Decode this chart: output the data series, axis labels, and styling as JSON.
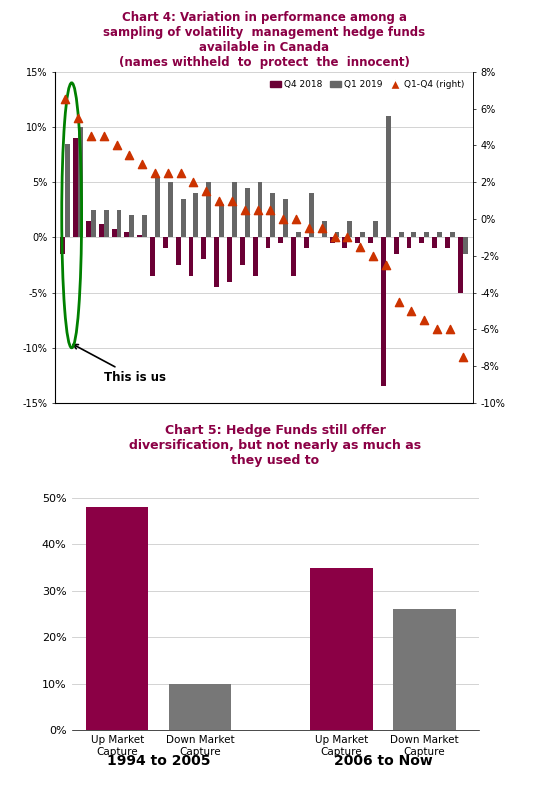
{
  "chart4_title": "Chart 4: Variation in performance among a\nsampling of volatility  management hedge funds\navailable in Canada\n(names withheld  to  protect  the  innocent)",
  "chart4_title_color": "#8B0045",
  "chart5_title": "Chart 5: Hedge Funds still offer\ndiversification, but not nearly as much as\nthey used to",
  "chart5_title_color": "#8B0045",
  "q4_2018": [
    -1.5,
    9.0,
    1.5,
    1.2,
    0.8,
    0.5,
    0.2,
    -3.5,
    -1.0,
    -2.5,
    -3.5,
    -2.0,
    -4.5,
    -4.0,
    -2.5,
    -3.5,
    -1.0,
    -0.5,
    -3.5,
    -1.0,
    0.0,
    -0.5,
    -1.0,
    -0.5,
    -0.5,
    -13.5,
    -1.5,
    -1.0,
    -0.5,
    -1.0,
    -1.0,
    -5.0
  ],
  "q1_2019": [
    8.5,
    10.0,
    2.5,
    2.5,
    2.5,
    2.0,
    2.0,
    5.5,
    5.0,
    3.5,
    4.0,
    5.0,
    3.0,
    5.0,
    4.5,
    5.0,
    4.0,
    3.5,
    0.5,
    4.0,
    1.5,
    0.5,
    1.5,
    0.5,
    1.5,
    11.0,
    0.5,
    0.5,
    0.5,
    0.5,
    0.5,
    -1.5
  ],
  "q1q4_right": [
    6.5,
    5.5,
    4.5,
    4.5,
    4.0,
    3.5,
    3.0,
    2.5,
    2.5,
    2.5,
    2.0,
    1.5,
    1.0,
    1.0,
    0.5,
    0.5,
    0.5,
    0.0,
    0.0,
    -0.5,
    -0.5,
    -1.0,
    -1.0,
    -1.5,
    -2.0,
    -2.5,
    -4.5,
    -5.0,
    -5.5,
    -6.0,
    -6.0,
    -7.5
  ],
  "bar_color_q4": "#6B0035",
  "bar_color_q1": "#666666",
  "triangle_color": "#CC3300",
  "ylim_left": [
    -15,
    15
  ],
  "ylim_right": [
    -10,
    8
  ],
  "yticks_left": [
    -15,
    -10,
    -5,
    0,
    5,
    10,
    15
  ],
  "yticks_right": [
    -10,
    -8,
    -6,
    -4,
    -2,
    0,
    2,
    4,
    6,
    8
  ],
  "ytick_labels_left": [
    "-15%",
    "-10%",
    "-5%",
    "0%",
    "5%",
    "10%",
    "15%"
  ],
  "ytick_labels_right": [
    "-10%",
    "-8%",
    "-6%",
    "-4%",
    "-2%",
    "0%",
    "2%",
    "4%",
    "6%",
    "8%"
  ],
  "annotation_text": "This is us",
  "chart5_categories": [
    "Up Market\nCapture",
    "Down Market\nCapture",
    "Up Market\nCapture",
    "Down Market\nCapture"
  ],
  "chart5_values": [
    48,
    10,
    35,
    26
  ],
  "chart5_colors": [
    "#8B0045",
    "#777777",
    "#8B0045",
    "#777777"
  ],
  "chart5_xlabels": [
    "1994 to 2005",
    "2006 to Now"
  ],
  "chart5_ylim": [
    0,
    55
  ],
  "chart5_yticks": [
    0,
    10,
    20,
    30,
    40,
    50
  ],
  "chart5_ytick_labels": [
    "0%",
    "10%",
    "20%",
    "30%",
    "40%",
    "50%"
  ],
  "background_color": "#ffffff",
  "grid_color": "#cccccc"
}
